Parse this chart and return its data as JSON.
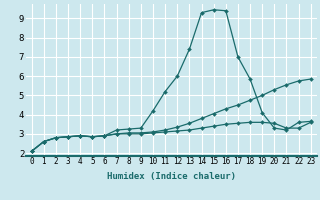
{
  "title": "",
  "xlabel": "Humidex (Indice chaleur)",
  "ylabel": "",
  "bg_color": "#cde8ee",
  "grid_color": "#ffffff",
  "line_color": "#1a6b6b",
  "xlim": [
    -0.5,
    23.5
  ],
  "ylim": [
    1.85,
    9.75
  ],
  "xticks": [
    0,
    1,
    2,
    3,
    4,
    5,
    6,
    7,
    8,
    9,
    10,
    11,
    12,
    13,
    14,
    15,
    16,
    17,
    18,
    19,
    20,
    21,
    22,
    23
  ],
  "yticks": [
    2,
    3,
    4,
    5,
    6,
    7,
    8,
    9
  ],
  "curve1_x": [
    0,
    1,
    2,
    3,
    4,
    5,
    6,
    7,
    8,
    9,
    10,
    11,
    12,
    13,
    14,
    15,
    16,
    17,
    18,
    19,
    20,
    21,
    22,
    23
  ],
  "curve1_y": [
    2.1,
    2.6,
    2.8,
    2.85,
    2.9,
    2.85,
    2.9,
    3.2,
    3.25,
    3.3,
    4.2,
    5.2,
    6.0,
    7.4,
    9.3,
    9.45,
    9.4,
    7.0,
    5.85,
    4.1,
    3.3,
    3.2,
    3.6,
    3.65
  ],
  "curve2_x": [
    0,
    1,
    2,
    3,
    4,
    5,
    6,
    7,
    8,
    9,
    10,
    11,
    12,
    13,
    14,
    15,
    16,
    17,
    18,
    19,
    20,
    21,
    22,
    23
  ],
  "curve2_y": [
    2.1,
    2.6,
    2.8,
    2.85,
    2.9,
    2.85,
    2.9,
    3.0,
    3.05,
    3.05,
    3.1,
    3.2,
    3.35,
    3.55,
    3.8,
    4.05,
    4.3,
    4.5,
    4.75,
    5.0,
    5.3,
    5.55,
    5.75,
    5.85
  ],
  "curve3_x": [
    0,
    1,
    2,
    3,
    4,
    5,
    6,
    7,
    8,
    9,
    10,
    11,
    12,
    13,
    14,
    15,
    16,
    17,
    18,
    19,
    20,
    21,
    22,
    23
  ],
  "curve3_y": [
    2.1,
    2.6,
    2.8,
    2.85,
    2.9,
    2.85,
    2.9,
    3.0,
    3.0,
    3.0,
    3.05,
    3.1,
    3.15,
    3.2,
    3.3,
    3.4,
    3.5,
    3.55,
    3.6,
    3.6,
    3.55,
    3.3,
    3.3,
    3.6
  ],
  "xlabel_fontsize": 6.5,
  "tick_fontsize": 5.5,
  "ytick_fontsize": 6.5
}
